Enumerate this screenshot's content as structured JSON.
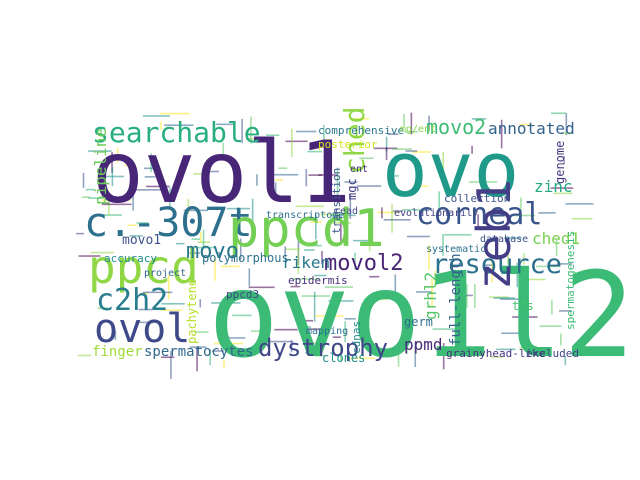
{
  "word_cloud": {
    "background": "#ffffff",
    "palette": "viridis",
    "words": [
      {
        "text": "ovo1l2",
        "color": "#3bbb75",
        "rot": 0
      },
      {
        "text": "ovol1",
        "color": "#482677",
        "rot": 0
      },
      {
        "text": "ovo",
        "color": "#1f9a8a",
        "rot": 0
      },
      {
        "text": "c.-307t",
        "color": "#2d708e",
        "rot": 0
      },
      {
        "text": "ppcd1",
        "color": "#73d055",
        "rot": 0
      },
      {
        "text": "ppcd",
        "color": "#8fd744",
        "rot": 0
      },
      {
        "text": "ovol",
        "color": "#3e4989",
        "rot": 0
      },
      {
        "text": "searchable",
        "color": "#29af7f",
        "rot": 0
      },
      {
        "text": "corneal",
        "color": "#39568c",
        "rot": 0
      },
      {
        "text": "resource",
        "color": "#2d708e",
        "rot": 0
      },
      {
        "text": "zeb1",
        "color": "#433e85",
        "rot": -90
      },
      {
        "text": "c2h2",
        "color": "#287d8e",
        "rot": 0
      },
      {
        "text": "dystrophy",
        "color": "#3f4788",
        "rot": 0
      },
      {
        "text": "movo2",
        "color": "#3dbc74",
        "rot": 0
      },
      {
        "text": "annotated",
        "color": "#33638d",
        "rot": 0
      },
      {
        "text": "movol2",
        "color": "#482475",
        "rot": 0
      },
      {
        "text": "movo",
        "color": "#2a788e",
        "rot": 0
      },
      {
        "text": "ched",
        "color": "#8fd744",
        "rot": -90
      },
      {
        "text": "ched1",
        "color": "#7ad151",
        "rot": 0
      },
      {
        "text": "spermatocytes",
        "color": "#31688e",
        "rot": 0
      },
      {
        "text": "finger",
        "color": "#a0da39",
        "rot": 0
      },
      {
        "text": "riken",
        "color": "#2a788e",
        "rot": 0
      },
      {
        "text": "movo1",
        "color": "#3b528b",
        "rot": 0
      },
      {
        "text": "pipeline",
        "color": "#6ccd5a",
        "rot": -90
      },
      {
        "text": "grhl2",
        "color": "#56c667",
        "rot": -90
      },
      {
        "text": "full-length",
        "color": "#33638d",
        "rot": -90
      },
      {
        "text": "ppmd",
        "color": "#482878",
        "rot": 0
      },
      {
        "text": "germ",
        "color": "#2e6f8e",
        "rot": 0
      },
      {
        "text": "grainyhead-like",
        "color": "#46337e",
        "rot": 0
      },
      {
        "text": "excluded",
        "color": "#3f4788",
        "rot": 0
      },
      {
        "text": "tfs",
        "color": "#46c06f",
        "rot": 0
      },
      {
        "text": "genome",
        "color": "#453882",
        "rot": -90
      },
      {
        "text": "zinc",
        "color": "#25ab82",
        "rot": 0
      },
      {
        "text": "mgc",
        "color": "#443a83",
        "rot": -90
      },
      {
        "text": "transition",
        "color": "#39568c",
        "rot": -90
      },
      {
        "text": "posterior",
        "color": "#d2e21b",
        "rot": 0
      },
      {
        "text": "comprehensive",
        "color": "#2a788e",
        "rot": 0
      },
      {
        "text": "mg/ent",
        "color": "#84d44b",
        "rot": 0
      },
      {
        "text": "polymorphous",
        "color": "#2c718e",
        "rot": 0
      },
      {
        "text": "epidermis",
        "color": "#472d7b",
        "rot": 0
      },
      {
        "text": "pachytene",
        "color": "#b5de2b",
        "rot": -90
      },
      {
        "text": "clones",
        "color": "#21918c",
        "rot": 0
      },
      {
        "text": "cdnas",
        "color": "#228b8d",
        "rot": -90
      },
      {
        "text": "accuracy",
        "color": "#228c8d",
        "rot": 0
      },
      {
        "text": "project",
        "color": "#31688e",
        "rot": 0
      },
      {
        "text": "collection",
        "color": "#3b528b",
        "rot": 0
      },
      {
        "text": "evolutionarily",
        "color": "#424086",
        "rot": 0
      },
      {
        "text": "systematic",
        "color": "#2c728e",
        "rot": 0
      },
      {
        "text": "database",
        "color": "#3b528b",
        "rot": 0
      },
      {
        "text": "transcriptome",
        "color": "#2d708e",
        "rot": 0
      },
      {
        "text": "spermatogenesis",
        "color": "#3dbc74",
        "rot": -90
      },
      {
        "text": "mapping",
        "color": "#2d708e",
        "rot": 0
      },
      {
        "text": "ppcd3",
        "color": "#3e4a89",
        "rot": 0
      },
      {
        "text": "read",
        "color": "#3e4989",
        "rot": 0
      },
      {
        "text": "ent",
        "color": "#472c7a",
        "rot": 0
      }
    ]
  }
}
